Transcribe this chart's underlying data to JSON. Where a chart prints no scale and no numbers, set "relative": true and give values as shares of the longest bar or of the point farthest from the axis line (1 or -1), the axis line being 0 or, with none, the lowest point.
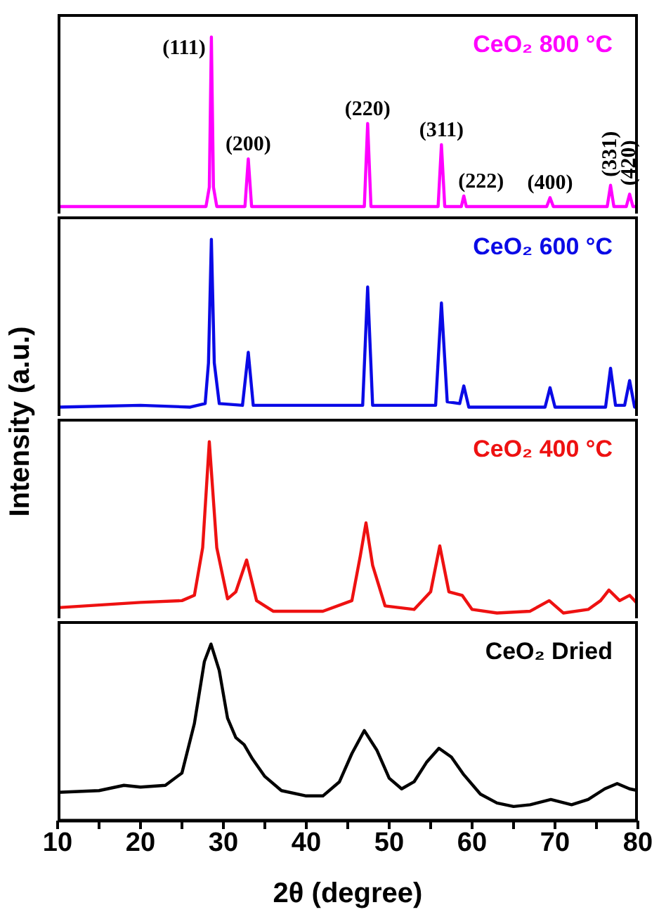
{
  "chart_data": [
    {
      "type": "line",
      "relative": true,
      "xlim": [
        10,
        80
      ],
      "tick_labels": false,
      "marker": "none",
      "series": [
        {
          "name": "CeO₂ 800 °C",
          "color": "#ff00ff",
          "x": [
            10,
            27.9,
            28.3,
            28.55,
            28.8,
            29.2,
            32.6,
            33.0,
            33.4,
            47.0,
            47.4,
            47.8,
            55.9,
            56.3,
            56.7,
            58.7,
            59.0,
            59.3,
            69.0,
            69.4,
            69.8,
            76.3,
            76.7,
            77.1,
            78.6,
            79.0,
            79.4,
            80
          ],
          "values": [
            0.04,
            0.04,
            0.15,
            1,
            0.15,
            0.04,
            0.04,
            0.31,
            0.04,
            0.04,
            0.51,
            0.04,
            0.04,
            0.39,
            0.04,
            0.04,
            0.1,
            0.04,
            0.04,
            0.09,
            0.04,
            0.04,
            0.16,
            0.04,
            0.04,
            0.11,
            0.04,
            0.04
          ]
        }
      ],
      "annotations": [
        {
          "text": "(111)",
          "x": 28.55,
          "y": 1
        },
        {
          "text": "(200)",
          "x": 33.0,
          "y": 0.31
        },
        {
          "text": "(220)",
          "x": 47.4,
          "y": 0.51
        },
        {
          "text": "(311)",
          "x": 56.3,
          "y": 0.39
        },
        {
          "text": "(222)",
          "x": 59.0,
          "y": 0.1
        },
        {
          "text": "(400)",
          "x": 69.4,
          "y": 0.09
        },
        {
          "text": "(331)",
          "x": 76.7,
          "y": 0.16
        },
        {
          "text": "(420)",
          "x": 79.0,
          "y": 0.11
        }
      ]
    },
    {
      "type": "line",
      "relative": true,
      "xlim": [
        10,
        80
      ],
      "tick_labels": false,
      "marker": "none",
      "series": [
        {
          "name": "CeO₂ 600 °C",
          "color": "#0a0ae6",
          "x": [
            10,
            20,
            26,
            27.8,
            28.2,
            28.55,
            28.9,
            29.5,
            32.3,
            33.0,
            33.6,
            46.8,
            47.4,
            48.0,
            55.6,
            56.3,
            57.0,
            58.5,
            59.0,
            59.6,
            68.8,
            69.4,
            70.0,
            76.1,
            76.7,
            77.3,
            78.4,
            79.0,
            79.6,
            80
          ],
          "values": [
            0.05,
            0.06,
            0.05,
            0.07,
            0.3,
            1,
            0.3,
            0.07,
            0.06,
            0.36,
            0.06,
            0.06,
            0.73,
            0.06,
            0.06,
            0.64,
            0.08,
            0.07,
            0.17,
            0.05,
            0.05,
            0.16,
            0.05,
            0.05,
            0.27,
            0.06,
            0.06,
            0.2,
            0.05,
            0.05
          ]
        }
      ]
    },
    {
      "type": "line",
      "relative": true,
      "xlim": [
        10,
        80
      ],
      "tick_labels": false,
      "marker": "none",
      "ylabel": "Intensity (a.u.)",
      "series": [
        {
          "name": "CeO₂ 400 °C",
          "color": "#ee1111",
          "x": [
            10,
            20,
            25,
            26.5,
            27.5,
            28.3,
            29.2,
            30.5,
            31.5,
            32.8,
            34,
            36,
            42,
            45.5,
            46.5,
            47.2,
            48,
            49.5,
            53,
            55,
            56.1,
            57.2,
            58.8,
            60,
            63,
            67,
            69.3,
            71,
            74,
            75.5,
            76.5,
            77.8,
            79,
            80
          ],
          "values": [
            0.06,
            0.09,
            0.1,
            0.13,
            0.4,
            1,
            0.4,
            0.11,
            0.15,
            0.33,
            0.1,
            0.04,
            0.04,
            0.1,
            0.35,
            0.54,
            0.3,
            0.07,
            0.05,
            0.15,
            0.41,
            0.15,
            0.13,
            0.05,
            0.03,
            0.04,
            0.1,
            0.03,
            0.05,
            0.1,
            0.16,
            0.1,
            0.13,
            0.08
          ]
        }
      ]
    },
    {
      "type": "line",
      "relative": true,
      "xlim": [
        10,
        80
      ],
      "xticks": [
        10,
        {
          "value": 15,
          "label": null
        },
        20,
        {
          "value": 25,
          "label": null
        },
        30,
        {
          "value": 35,
          "label": null
        },
        40,
        {
          "value": 45,
          "label": null
        },
        50,
        {
          "value": 55,
          "label": null
        },
        60,
        {
          "value": 65,
          "label": null
        },
        70,
        {
          "value": 75,
          "label": null
        },
        80
      ],
      "tick_labels": "x",
      "marker": "none",
      "xlabel": "2θ (degree)",
      "series": [
        {
          "name": "CeO₂ Dried",
          "color": "#000000",
          "x": [
            10,
            15,
            18,
            20,
            23,
            25,
            26.5,
            27.7,
            28.5,
            29.5,
            30.5,
            31.5,
            32.5,
            33.5,
            35,
            37,
            40,
            42,
            44,
            45.5,
            47,
            48.5,
            50,
            51.5,
            53,
            54.5,
            56,
            57.5,
            59,
            61,
            63,
            65,
            67,
            69.5,
            72,
            74,
            76,
            77.5,
            79,
            80
          ],
          "values": [
            0.16,
            0.17,
            0.2,
            0.19,
            0.2,
            0.27,
            0.55,
            0.9,
            1,
            0.85,
            0.58,
            0.47,
            0.43,
            0.35,
            0.25,
            0.17,
            0.14,
            0.14,
            0.22,
            0.38,
            0.51,
            0.4,
            0.24,
            0.18,
            0.22,
            0.33,
            0.41,
            0.36,
            0.26,
            0.15,
            0.1,
            0.08,
            0.09,
            0.12,
            0.09,
            0.12,
            0.18,
            0.21,
            0.18,
            0.17
          ]
        }
      ]
    }
  ]
}
